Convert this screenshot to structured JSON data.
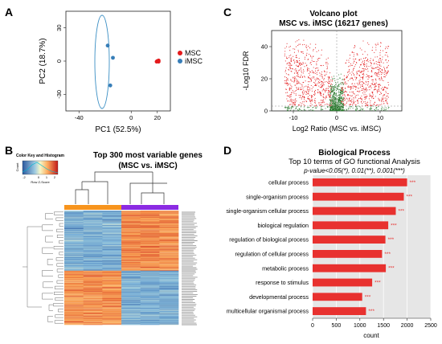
{
  "panels": {
    "A": "A",
    "B": "B",
    "C": "C",
    "D": "D"
  },
  "pca": {
    "xlabel": "PC1 (52.5%)",
    "ylabel": "PC2 (18.7%)",
    "x_ticks": [
      -40,
      0,
      20
    ],
    "y_ticks": [
      30,
      0,
      -30
    ],
    "legend": [
      {
        "name": "MSC",
        "color": "#e41a1c"
      },
      {
        "name": "iMSC",
        "color": "#377eb8"
      }
    ]
  },
  "volcano": {
    "title": "Volcano plot",
    "subtitle": "MSC vs. iMSC (16217 genes)",
    "ylabel": "-Log10 FDR",
    "xlabel": "Log2 Ratio (MSC vs. iMSC)",
    "x_ticks": [
      -10,
      0,
      10
    ],
    "y_ticks": [
      40,
      20,
      0
    ],
    "colors": {
      "significant": "#e31a1c",
      "nonsignificant": "#2e7d32"
    }
  },
  "heatmap": {
    "title": "Top 300 most variable genes",
    "subtitle": "(MSC vs. iMSC)",
    "color_key_title": "Color Key and Histogram",
    "color_key_xlabel": "Row Z-Score",
    "color_key_ylabel": "Count",
    "color_key_ticks": [
      "-2",
      "0",
      "1",
      "2"
    ],
    "group_colors": {
      "iMSC": "#f7941d",
      "MSC": "#8b2be2"
    }
  },
  "go": {
    "title": "Biological Process",
    "subtitle": "Top 10 terms of GO functional Analysis",
    "pvalue_note": "p-value<0.05(*), 0.01(**), 0.001(***)",
    "xlabel": "count",
    "x_ticks": [
      0,
      500,
      1000,
      1500,
      2000,
      2500
    ],
    "bar_color": "#e8312f"
  },
  "chart_data": [
    {
      "type": "scatter",
      "title": "",
      "xlabel": "PC1 (52.5%)",
      "ylabel": "PC2 (18.7%)",
      "xlim": [
        -50,
        30
      ],
      "ylim": [
        -45,
        45
      ],
      "series": [
        {
          "name": "MSC",
          "points": [
            [
              20,
              0
            ],
            [
              21,
              0.5
            ],
            [
              19.5,
              -0.5
            ],
            [
              21,
              -0.5
            ]
          ]
        },
        {
          "name": "iMSC",
          "points": [
            [
              -18,
              14
            ],
            [
              -14,
              3
            ],
            [
              -16,
              -22
            ]
          ]
        }
      ]
    },
    {
      "type": "scatter",
      "title": "Volcano plot",
      "subtitle": "MSC vs. iMSC (16217 genes)",
      "xlabel": "Log2 Ratio (MSC vs. iMSC)",
      "ylabel": "-Log10 FDR",
      "xlim": [
        -15,
        15
      ],
      "ylim": [
        0,
        50
      ]
    },
    {
      "type": "heatmap",
      "title": "Top 300 most variable genes",
      "subtitle": "(MSC vs. iMSC)",
      "columns": 6,
      "column_groups": [
        "iMSC",
        "iMSC",
        "iMSC",
        "MSC",
        "MSC",
        "MSC"
      ]
    },
    {
      "type": "bar",
      "orientation": "horizontal",
      "title": "Biological Process",
      "subtitle": "Top 10 terms of GO functional Analysis",
      "xlabel": "count",
      "xlim": [
        0,
        2500
      ],
      "categories": [
        "cellular process",
        "single-organism process",
        "single-organism cellular process",
        "biological regulation",
        "regulation of biological process",
        "regulation of cellular process",
        "metabolic process",
        "response to stimulus",
        "developmental process",
        "multicellular organismal process"
      ],
      "values": [
        2000,
        1930,
        1760,
        1600,
        1540,
        1470,
        1550,
        1260,
        1050,
        1130
      ],
      "significance": [
        "***",
        "***",
        "***",
        "***",
        "***",
        "***",
        "***",
        "***",
        "***",
        "***"
      ]
    }
  ]
}
